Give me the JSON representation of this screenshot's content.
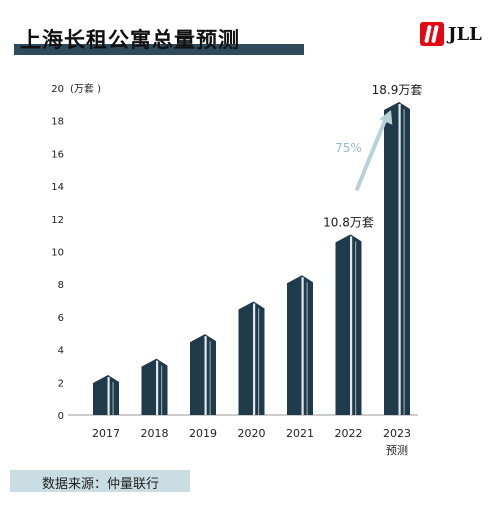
{
  "title": "上海长租公寓总量预测",
  "logo_text": "JLL",
  "source": "数据来源：仲量联行",
  "colors": {
    "bar": "#1f3a4a",
    "bar_light": "#dfe8ec",
    "title_bar": "#2e4a5c",
    "arrow": "#b9d1d8",
    "logo_red": "#e30613"
  },
  "chart_data": {
    "type": "bar",
    "ylabel": "(万套 )",
    "ylim": [
      0,
      20
    ],
    "yticks": [
      "0",
      "2",
      "4",
      "6",
      "8",
      "10",
      "12",
      "14",
      "16",
      "18",
      "20"
    ],
    "categories": [
      "2017",
      "2018",
      "2019",
      "2020",
      "2021",
      "2022",
      "2023"
    ],
    "category_sublabels": [
      "",
      "",
      "",
      "",
      "",
      "",
      "预测"
    ],
    "values": [
      2.2,
      3.2,
      4.7,
      6.7,
      8.3,
      10.8,
      18.9
    ],
    "data_labels": [
      "",
      "",
      "",
      "",
      "",
      "10.8万套",
      "18.9万套"
    ],
    "annotation": {
      "text": "75%",
      "from": "2022",
      "to": "2023"
    },
    "grid": false,
    "legend": "none"
  }
}
